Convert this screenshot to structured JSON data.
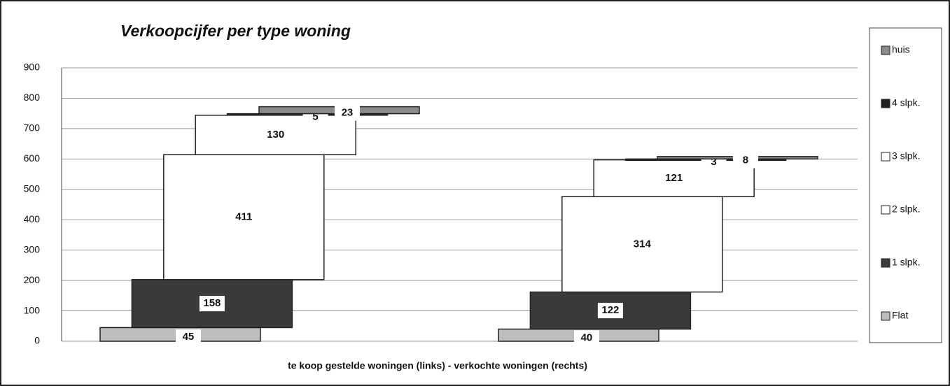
{
  "chart_data": {
    "type": "bar",
    "stacked": true,
    "title": "Verkoopcijfer per type woning",
    "x_label": "te koop gestelde woningen (links) - verkochte woningen (rechts)",
    "categories": [
      null,
      null
    ],
    "series": [
      {
        "name": "Flat",
        "color": "#bdbdbd",
        "values": [
          45,
          40
        ]
      },
      {
        "name": "1 slpk.",
        "color": "#3a3a3a",
        "values": [
          158,
          122
        ]
      },
      {
        "name": "2 slpk.",
        "color": "#ffffff",
        "values": [
          411,
          314
        ]
      },
      {
        "name": "3 slpk.",
        "color": "#ffffff",
        "values": [
          130,
          121
        ]
      },
      {
        "name": "4 slpk.",
        "color": "#222222",
        "values": [
          5,
          3
        ]
      },
      {
        "name": "huis",
        "color": "#8a8a8a",
        "values": [
          23,
          8
        ]
      }
    ],
    "ylim": [
      0,
      900
    ],
    "yticks": [
      0,
      100,
      200,
      300,
      400,
      500,
      600,
      700,
      800,
      900
    ],
    "grid": true,
    "legend": "right"
  }
}
